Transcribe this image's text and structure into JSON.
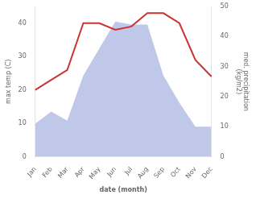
{
  "chart_data": {
    "type": "line",
    "xlabel": "date (month)",
    "ylabel": "max temp (C)",
    "y2label": "med. precipitation\n(kg/m2)",
    "categories": [
      "Jan",
      "Feb",
      "Mar",
      "Apr",
      "May",
      "Jun",
      "Jul",
      "Aug",
      "Sep",
      "Oct",
      "Nov",
      "Dec"
    ],
    "series": [
      {
        "type": "line",
        "color": "#cc3333",
        "values": [
          20,
          23,
          26,
          40,
          40,
          38,
          39,
          43,
          43,
          40,
          29,
          24
        ]
      },
      {
        "type": "area",
        "color": "#bfc8e8",
        "axis": "y2",
        "values": [
          11,
          15,
          12,
          27,
          36,
          45,
          44,
          44,
          27,
          18,
          10,
          10
        ]
      }
    ],
    "ylim": [
      0,
      45
    ],
    "yticks": [
      0,
      10,
      20,
      30,
      40
    ],
    "y2lim": [
      0,
      50
    ],
    "y2ticks": [
      0,
      10,
      20,
      30,
      40,
      50
    ],
    "grid": false
  }
}
